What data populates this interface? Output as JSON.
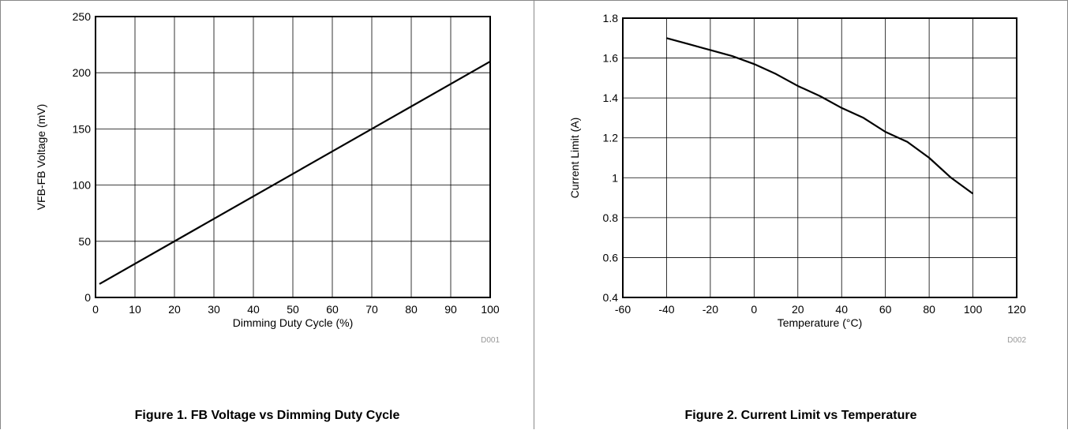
{
  "chart_data": [
    {
      "type": "line",
      "title": "",
      "xlabel": "Dimming Duty Cycle (%)",
      "ylabel": "VFB-FB Voltage (mV)",
      "xlim": [
        0,
        100
      ],
      "ylim": [
        0,
        250
      ],
      "xticks": [
        0,
        10,
        20,
        30,
        40,
        50,
        60,
        70,
        80,
        90,
        100
      ],
      "yticks": [
        0,
        50,
        100,
        150,
        200,
        250
      ],
      "grid": true,
      "series": [
        {
          "x": [
            1,
            100
          ],
          "y": [
            12,
            210
          ]
        }
      ],
      "code": "D001",
      "caption": "Figure 1. FB Voltage vs Dimming Duty Cycle"
    },
    {
      "type": "line",
      "title": "",
      "xlabel": "Temperature (°C)",
      "ylabel": "Current Limit (A)",
      "xlim": [
        -60,
        120
      ],
      "ylim": [
        0.4,
        1.8
      ],
      "xticks": [
        -60,
        -40,
        -20,
        0,
        20,
        40,
        60,
        80,
        100,
        120
      ],
      "yticks": [
        0.4,
        0.6,
        0.8,
        1,
        1.2,
        1.4,
        1.6,
        1.8
      ],
      "grid": true,
      "series": [
        {
          "x": [
            -40,
            -30,
            -20,
            -10,
            0,
            10,
            20,
            30,
            40,
            50,
            60,
            70,
            80,
            90,
            100
          ],
          "y": [
            1.7,
            1.67,
            1.64,
            1.61,
            1.57,
            1.52,
            1.46,
            1.41,
            1.35,
            1.3,
            1.23,
            1.18,
            1.1,
            1.0,
            0.92
          ]
        }
      ],
      "code": "D002",
      "caption": "Figure 2. Current Limit vs Temperature"
    }
  ]
}
